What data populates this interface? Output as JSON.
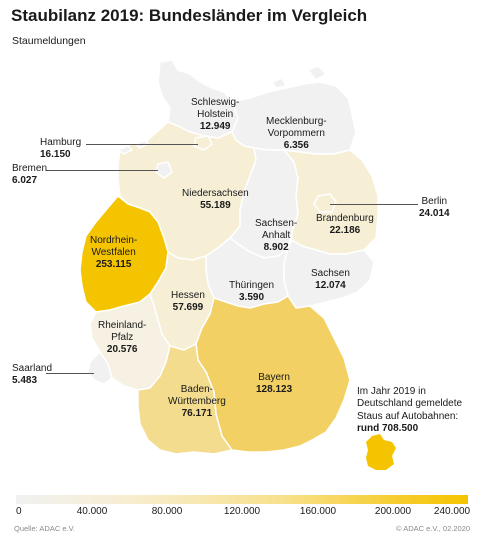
{
  "title": "Staubilanz 2019: Bundesländer im Vergleich",
  "subtitle": "Staumeldungen",
  "states": {
    "schleswig_holstein": {
      "name1": "Schleswig-",
      "name2": "Holstein",
      "value": "12.949",
      "num": 12949
    },
    "hamburg": {
      "name": "Hamburg",
      "value": "16.150",
      "num": 16150
    },
    "bremen": {
      "name": "Bremen",
      "value": "6.027",
      "num": 6027
    },
    "mecklenburg_vorpommern": {
      "name1": "Mecklenburg-",
      "name2": "Vorpommern",
      "value": "6.356",
      "num": 6356
    },
    "berlin": {
      "name": "Berlin",
      "value": "24.014",
      "num": 24014
    },
    "niedersachsen": {
      "name": "Niedersachsen",
      "value": "55.189",
      "num": 55189
    },
    "brandenburg": {
      "name": "Brandenburg",
      "value": "22.186",
      "num": 22186
    },
    "sachsen_anhalt": {
      "name1": "Sachsen-",
      "name2": "Anhalt",
      "value": "8.902",
      "num": 8902
    },
    "nordrhein_westfalen": {
      "name1": "Nordrhein-",
      "name2": "Westfalen",
      "value": "253.115",
      "num": 253115
    },
    "sachsen": {
      "name": "Sachsen",
      "value": "12.074",
      "num": 12074
    },
    "thueringen": {
      "name": "Thüringen",
      "value": "3.590",
      "num": 3590
    },
    "hessen": {
      "name": "Hessen",
      "value": "57.699",
      "num": 57699
    },
    "rheinland_pfalz": {
      "name1": "Rheinland-",
      "name2": "Pfalz",
      "value": "20.576",
      "num": 20576
    },
    "saarland": {
      "name": "Saarland",
      "value": "5.483",
      "num": 5483
    },
    "bayern": {
      "name": "Bayern",
      "value": "128.123",
      "num": 128123
    },
    "baden_wuerttemberg": {
      "name1": "Baden-",
      "name2": "Württemberg",
      "value": "76.171",
      "num": 76171
    }
  },
  "summary": {
    "line1": "Im Jahr 2019 in",
    "line2": "Deutschland gemeldete",
    "line3": "Staus auf Autobahnen:",
    "total": "rund 708.500"
  },
  "scale": {
    "ticks": [
      "0",
      "40.000",
      "80.000",
      "120.000",
      "160.000",
      "200.000",
      "240.000"
    ],
    "min": 0,
    "max": 240000
  },
  "colors": {
    "lowest": "#f1f1f1",
    "low": "#f6eed3",
    "mid": "#f3dc8d",
    "high": "#f2d064",
    "highest": "#f5c400"
  },
  "footer": {
    "source": "Quelle: ADAC e.V.",
    "copyright": "© ADAC e.V., 02.2020"
  }
}
